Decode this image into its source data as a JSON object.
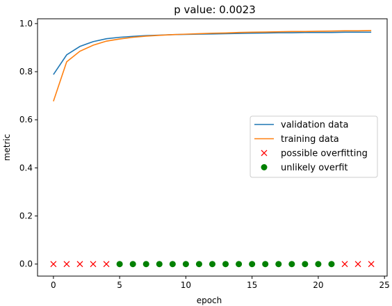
{
  "chart_data": {
    "type": "line",
    "title": "p value: 0.0023",
    "xlabel": "epoch",
    "ylabel": "metric",
    "xlim": [
      -1.2,
      25.2
    ],
    "ylim": [
      -0.05,
      1.02
    ],
    "x_ticks": [
      0,
      5,
      10,
      15,
      20,
      25
    ],
    "y_ticks": [
      0.0,
      0.2,
      0.4,
      0.6,
      0.8,
      1.0
    ],
    "x_tick_labels": [
      "0",
      "5",
      "10",
      "15",
      "20",
      "25"
    ],
    "y_tick_labels": [
      "0.0",
      "0.2",
      "0.4",
      "0.6",
      "0.8",
      "1.0"
    ],
    "grid": false,
    "legend_position": "center-right",
    "x": [
      0,
      1,
      2,
      3,
      4,
      5,
      6,
      7,
      8,
      9,
      10,
      11,
      12,
      13,
      14,
      15,
      16,
      17,
      18,
      19,
      20,
      21,
      22,
      23,
      24
    ],
    "series": [
      {
        "name": "validation data",
        "kind": "line",
        "color": "#1f77b4",
        "values": [
          0.788,
          0.87,
          0.905,
          0.925,
          0.937,
          0.943,
          0.947,
          0.95,
          0.952,
          0.954,
          0.955,
          0.956,
          0.957,
          0.958,
          0.959,
          0.96,
          0.961,
          0.962,
          0.962,
          0.963,
          0.963,
          0.963,
          0.964,
          0.964,
          0.964
        ]
      },
      {
        "name": "training data",
        "kind": "line",
        "color": "#ff7f0e",
        "values": [
          0.677,
          0.841,
          0.885,
          0.91,
          0.927,
          0.936,
          0.943,
          0.948,
          0.951,
          0.954,
          0.956,
          0.958,
          0.96,
          0.961,
          0.963,
          0.964,
          0.965,
          0.966,
          0.967,
          0.967,
          0.968,
          0.969,
          0.97,
          0.97,
          0.971
        ]
      },
      {
        "name": "possible overfitting",
        "kind": "marker-x",
        "color": "#ff0000",
        "x": [
          0,
          1,
          2,
          3,
          4,
          22,
          23,
          24
        ],
        "values": [
          0,
          0,
          0,
          0,
          0,
          0,
          0,
          0
        ]
      },
      {
        "name": "unlikely overfit",
        "kind": "marker-dot",
        "color": "#008000",
        "x": [
          5,
          6,
          7,
          8,
          9,
          10,
          11,
          12,
          13,
          14,
          15,
          16,
          17,
          18,
          19,
          20,
          21
        ],
        "values": [
          0,
          0,
          0,
          0,
          0,
          0,
          0,
          0,
          0,
          0,
          0,
          0,
          0,
          0,
          0,
          0,
          0
        ]
      }
    ]
  }
}
